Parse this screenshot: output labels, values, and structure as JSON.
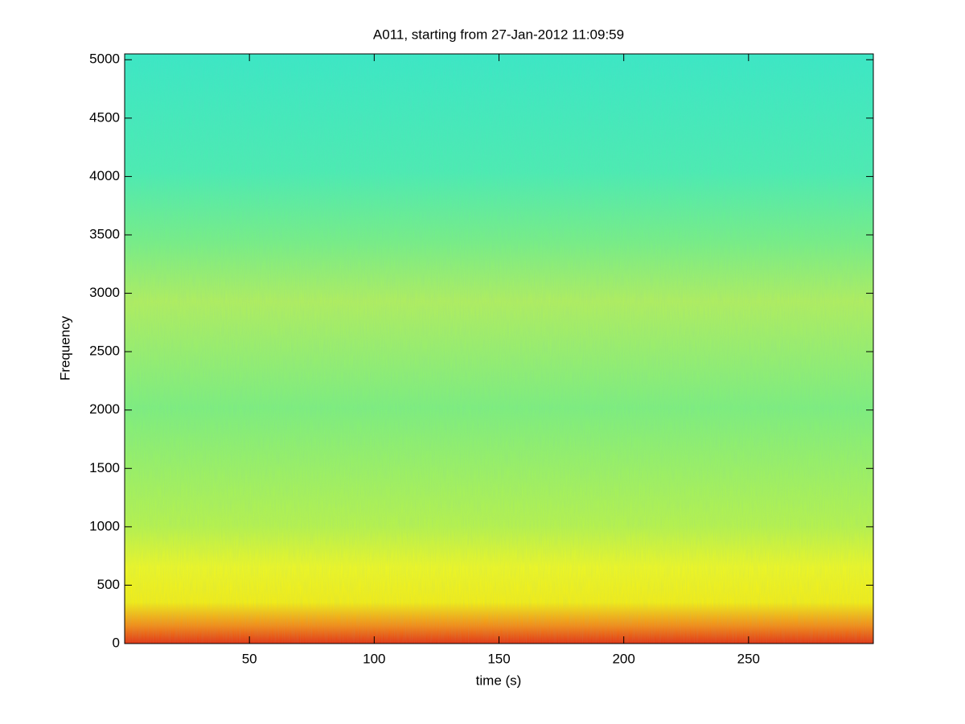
{
  "chart_data": {
    "type": "spectrogram",
    "title": "A011, starting from 27-Jan-2012 11:09:59",
    "x_label": "time (s)",
    "y_label": "Frequency",
    "xlim": [
      0,
      300
    ],
    "ylim": [
      0,
      5050
    ],
    "xticks": [
      50,
      100,
      150,
      200,
      250
    ],
    "yticks": [
      0,
      500,
      1000,
      1500,
      2000,
      2500,
      3000,
      3500,
      4000,
      4500,
      5000
    ]
  }
}
